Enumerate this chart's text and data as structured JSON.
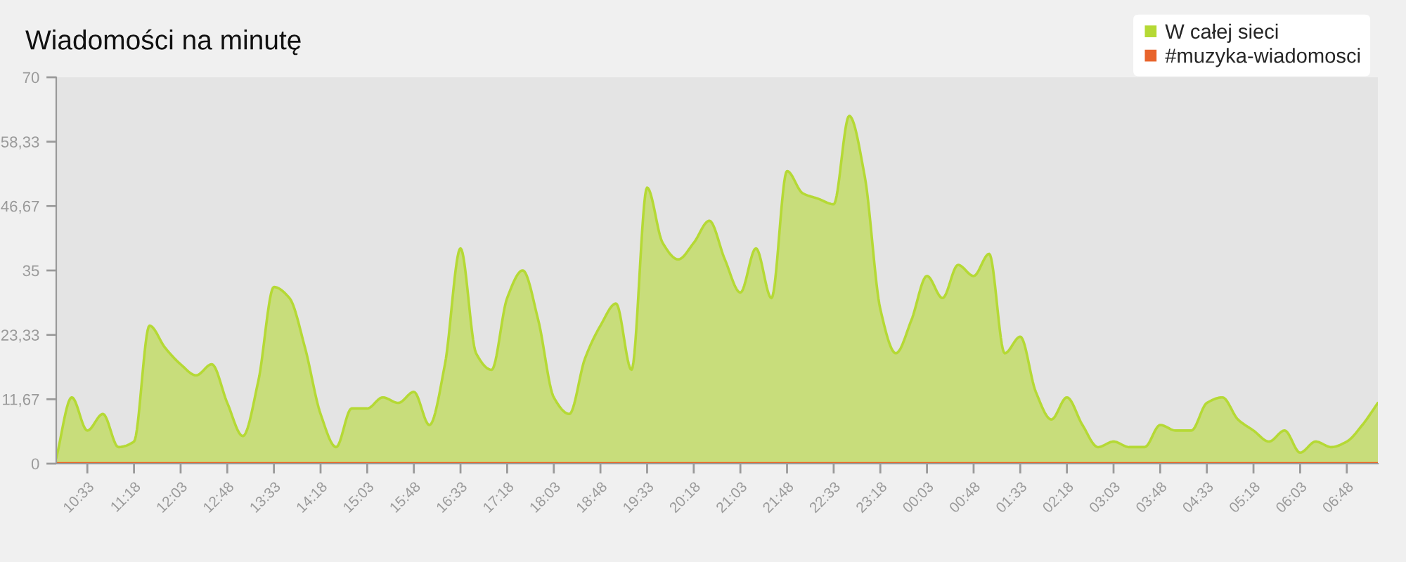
{
  "chart_data": {
    "type": "area",
    "title": "Wiadomości na minutę",
    "categories": [
      null,
      null,
      "10:33",
      null,
      null,
      "11:18",
      null,
      null,
      "12:03",
      null,
      null,
      "12:48",
      null,
      null,
      "13:33",
      null,
      null,
      "14:18",
      null,
      null,
      "15:03",
      null,
      null,
      "15:48",
      null,
      null,
      "16:33",
      null,
      null,
      "17:18",
      null,
      null,
      "18:03",
      null,
      null,
      "18:48",
      null,
      null,
      "19:33",
      null,
      null,
      "20:18",
      null,
      null,
      "21:03",
      null,
      null,
      "21:48",
      null,
      null,
      "22:33",
      null,
      null,
      "23:18",
      null,
      null,
      "00:03",
      null,
      null,
      "00:48",
      null,
      null,
      "01:33",
      null,
      null,
      "02:18",
      null,
      null,
      "03:03",
      null,
      null,
      "03:48",
      null,
      null,
      "04:33",
      null,
      null,
      "05:18",
      null,
      null,
      "06:03",
      null,
      null,
      "06:48",
      null,
      null
    ],
    "series": [
      {
        "name": "W całej sieci",
        "color": "#b5d935",
        "values": [
          1,
          12,
          6,
          9,
          3,
          4,
          25,
          21,
          18,
          16,
          18,
          11,
          5,
          15,
          32,
          30,
          21,
          9,
          3,
          10,
          10,
          12,
          11,
          13,
          7,
          18,
          39,
          20,
          17,
          30,
          35,
          26,
          12,
          9,
          19,
          25,
          29,
          17,
          50,
          40,
          37,
          40,
          44,
          37,
          31,
          39,
          30,
          53,
          49,
          48,
          47,
          63,
          52,
          28,
          20,
          26,
          34,
          30,
          36,
          34,
          38,
          20,
          23,
          13,
          8,
          12,
          7,
          3,
          4,
          3,
          3,
          7,
          6,
          6,
          11,
          12,
          8,
          6,
          4,
          6,
          2,
          4,
          3,
          4,
          7,
          11
        ]
      },
      {
        "name": "#muzyka-wiadomosci",
        "type": "line",
        "color": "#e8642c",
        "values": [
          0,
          0,
          0,
          0,
          0,
          0,
          0,
          0,
          0,
          0,
          0,
          0,
          0,
          0,
          0,
          0,
          0,
          0,
          0,
          0,
          0,
          0,
          0,
          0,
          0,
          0,
          0,
          0,
          0,
          0,
          0,
          0,
          0,
          0,
          0,
          0,
          0,
          0,
          0,
          0,
          0,
          0,
          0,
          0,
          0,
          0,
          0,
          0,
          0,
          0,
          0,
          0,
          0,
          0,
          0,
          0,
          0,
          0,
          0,
          0,
          0,
          0,
          0,
          0,
          0,
          0,
          0,
          0,
          0,
          0,
          0,
          0,
          0,
          0,
          0,
          0,
          0,
          0,
          0,
          0,
          0,
          0,
          0,
          0,
          0,
          0
        ]
      }
    ],
    "ylim": [
      0,
      70
    ],
    "yticks": [
      0,
      {
        "value": 11.67,
        "label": "11,67"
      },
      {
        "value": 23.33,
        "label": "23,33"
      },
      35,
      {
        "value": 46.67,
        "label": "46,67"
      },
      {
        "value": 58.33,
        "label": "58,33"
      },
      70
    ],
    "legend": "top right"
  }
}
